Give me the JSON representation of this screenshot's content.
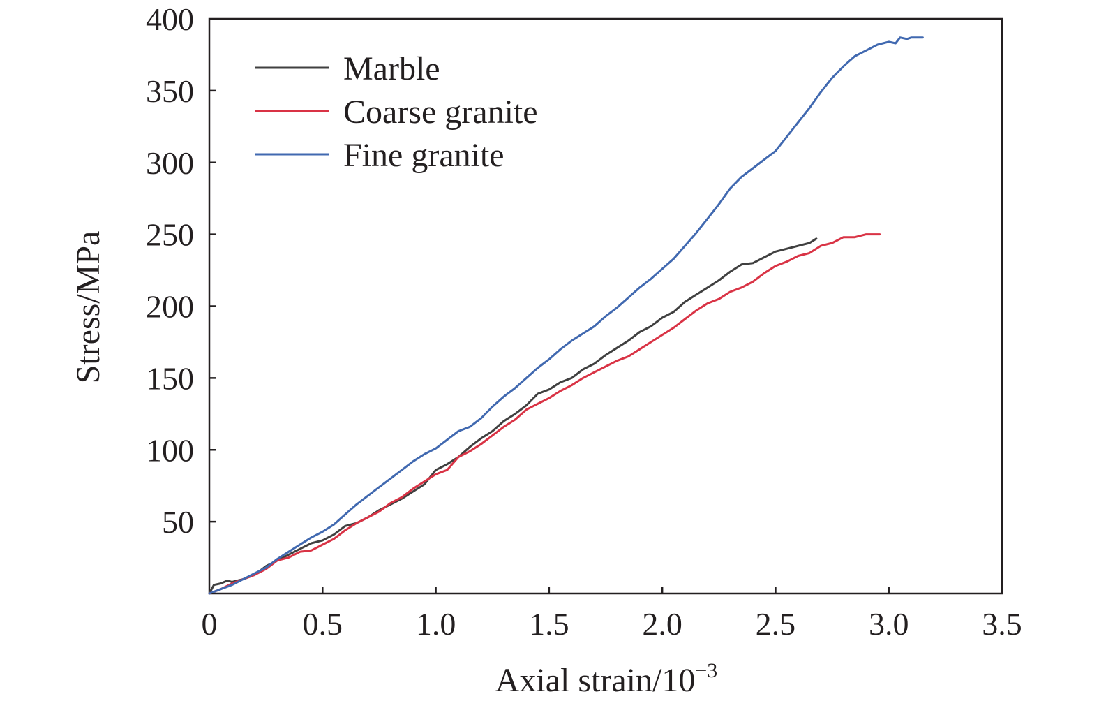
{
  "chart_data": {
    "type": "line",
    "title": "",
    "xlabel": "Axial strain/10",
    "xlabel_superscript": "−3",
    "ylabel": "Stress/MPa",
    "xlim": [
      0,
      3.5
    ],
    "ylim": [
      0,
      400
    ],
    "x_ticks": [
      0,
      0.5,
      1.0,
      1.5,
      2.0,
      2.5,
      3.0,
      3.5
    ],
    "x_tick_labels": [
      "0",
      "0.5",
      "1.0",
      "1.5",
      "2.0",
      "2.5",
      "3.0",
      "3.5"
    ],
    "y_ticks": [
      50,
      100,
      150,
      200,
      250,
      300,
      350,
      400
    ],
    "y_tick_labels": [
      "50",
      "100",
      "150",
      "200",
      "250",
      "300",
      "350",
      "400"
    ],
    "grid": false,
    "legend_position": "top-left",
    "series": [
      {
        "name": "Marble",
        "color": "#404040",
        "points": [
          [
            0,
            0
          ],
          [
            0.02,
            6
          ],
          [
            0.05,
            7
          ],
          [
            0.08,
            9
          ],
          [
            0.1,
            8
          ],
          [
            0.15,
            10
          ],
          [
            0.2,
            13
          ],
          [
            0.25,
            19
          ],
          [
            0.3,
            23
          ],
          [
            0.35,
            27
          ],
          [
            0.4,
            31
          ],
          [
            0.45,
            35
          ],
          [
            0.5,
            37
          ],
          [
            0.55,
            41
          ],
          [
            0.6,
            47
          ],
          [
            0.65,
            49
          ],
          [
            0.7,
            53
          ],
          [
            0.75,
            58
          ],
          [
            0.8,
            62
          ],
          [
            0.85,
            66
          ],
          [
            0.9,
            71
          ],
          [
            0.95,
            76
          ],
          [
            1.0,
            86
          ],
          [
            1.05,
            90
          ],
          [
            1.1,
            95
          ],
          [
            1.15,
            102
          ],
          [
            1.2,
            108
          ],
          [
            1.25,
            113
          ],
          [
            1.3,
            120
          ],
          [
            1.35,
            125
          ],
          [
            1.4,
            131
          ],
          [
            1.45,
            139
          ],
          [
            1.5,
            142
          ],
          [
            1.55,
            147
          ],
          [
            1.6,
            150
          ],
          [
            1.65,
            156
          ],
          [
            1.7,
            160
          ],
          [
            1.75,
            166
          ],
          [
            1.8,
            171
          ],
          [
            1.85,
            176
          ],
          [
            1.9,
            182
          ],
          [
            1.95,
            186
          ],
          [
            2.0,
            192
          ],
          [
            2.05,
            196
          ],
          [
            2.1,
            203
          ],
          [
            2.15,
            208
          ],
          [
            2.2,
            213
          ],
          [
            2.25,
            218
          ],
          [
            2.3,
            224
          ],
          [
            2.35,
            229
          ],
          [
            2.4,
            230
          ],
          [
            2.45,
            234
          ],
          [
            2.5,
            238
          ],
          [
            2.55,
            240
          ],
          [
            2.6,
            242
          ],
          [
            2.65,
            244
          ],
          [
            2.68,
            247
          ]
        ]
      },
      {
        "name": "Coarse granite",
        "color": "#d93345",
        "points": [
          [
            0,
            0
          ],
          [
            0.05,
            3
          ],
          [
            0.1,
            7
          ],
          [
            0.15,
            10
          ],
          [
            0.2,
            13
          ],
          [
            0.25,
            17
          ],
          [
            0.3,
            23
          ],
          [
            0.35,
            25
          ],
          [
            0.4,
            29
          ],
          [
            0.45,
            30
          ],
          [
            0.5,
            34
          ],
          [
            0.55,
            38
          ],
          [
            0.6,
            44
          ],
          [
            0.65,
            49
          ],
          [
            0.7,
            53
          ],
          [
            0.75,
            57
          ],
          [
            0.8,
            63
          ],
          [
            0.85,
            67
          ],
          [
            0.9,
            73
          ],
          [
            0.95,
            78
          ],
          [
            1.0,
            83
          ],
          [
            1.05,
            86
          ],
          [
            1.1,
            95
          ],
          [
            1.15,
            99
          ],
          [
            1.2,
            104
          ],
          [
            1.25,
            110
          ],
          [
            1.3,
            116
          ],
          [
            1.35,
            121
          ],
          [
            1.4,
            128
          ],
          [
            1.45,
            132
          ],
          [
            1.5,
            136
          ],
          [
            1.55,
            141
          ],
          [
            1.6,
            145
          ],
          [
            1.65,
            150
          ],
          [
            1.7,
            154
          ],
          [
            1.75,
            158
          ],
          [
            1.8,
            162
          ],
          [
            1.85,
            165
          ],
          [
            1.9,
            170
          ],
          [
            1.95,
            175
          ],
          [
            2.0,
            180
          ],
          [
            2.05,
            185
          ],
          [
            2.1,
            191
          ],
          [
            2.15,
            197
          ],
          [
            2.2,
            202
          ],
          [
            2.25,
            205
          ],
          [
            2.3,
            210
          ],
          [
            2.35,
            213
          ],
          [
            2.4,
            217
          ],
          [
            2.45,
            223
          ],
          [
            2.5,
            228
          ],
          [
            2.55,
            231
          ],
          [
            2.6,
            235
          ],
          [
            2.65,
            237
          ],
          [
            2.7,
            242
          ],
          [
            2.75,
            244
          ],
          [
            2.8,
            248
          ],
          [
            2.85,
            248
          ],
          [
            2.9,
            250
          ],
          [
            2.96,
            250
          ]
        ]
      },
      {
        "name": "Fine granite",
        "color": "#4169b0",
        "points": [
          [
            0,
            0
          ],
          [
            0.05,
            3
          ],
          [
            0.1,
            6
          ],
          [
            0.15,
            10
          ],
          [
            0.2,
            14
          ],
          [
            0.25,
            18
          ],
          [
            0.3,
            24
          ],
          [
            0.35,
            29
          ],
          [
            0.4,
            34
          ],
          [
            0.45,
            39
          ],
          [
            0.5,
            43
          ],
          [
            0.55,
            48
          ],
          [
            0.6,
            55
          ],
          [
            0.65,
            62
          ],
          [
            0.7,
            68
          ],
          [
            0.75,
            74
          ],
          [
            0.8,
            80
          ],
          [
            0.85,
            86
          ],
          [
            0.9,
            92
          ],
          [
            0.95,
            97
          ],
          [
            1.0,
            101
          ],
          [
            1.05,
            107
          ],
          [
            1.1,
            113
          ],
          [
            1.15,
            116
          ],
          [
            1.2,
            122
          ],
          [
            1.25,
            130
          ],
          [
            1.3,
            137
          ],
          [
            1.35,
            143
          ],
          [
            1.4,
            150
          ],
          [
            1.45,
            157
          ],
          [
            1.5,
            163
          ],
          [
            1.55,
            170
          ],
          [
            1.6,
            176
          ],
          [
            1.65,
            181
          ],
          [
            1.7,
            186
          ],
          [
            1.75,
            193
          ],
          [
            1.8,
            199
          ],
          [
            1.85,
            206
          ],
          [
            1.9,
            213
          ],
          [
            1.95,
            219
          ],
          [
            2.0,
            226
          ],
          [
            2.05,
            233
          ],
          [
            2.1,
            242
          ],
          [
            2.15,
            251
          ],
          [
            2.2,
            261
          ],
          [
            2.25,
            271
          ],
          [
            2.3,
            282
          ],
          [
            2.35,
            290
          ],
          [
            2.4,
            296
          ],
          [
            2.45,
            302
          ],
          [
            2.5,
            308
          ],
          [
            2.55,
            318
          ],
          [
            2.6,
            328
          ],
          [
            2.65,
            338
          ],
          [
            2.7,
            349
          ],
          [
            2.75,
            359
          ],
          [
            2.8,
            367
          ],
          [
            2.85,
            374
          ],
          [
            2.9,
            378
          ],
          [
            2.95,
            382
          ],
          [
            3.0,
            384
          ],
          [
            3.03,
            383
          ],
          [
            3.05,
            387
          ],
          [
            3.08,
            386
          ],
          [
            3.1,
            387
          ],
          [
            3.15,
            387
          ]
        ]
      }
    ]
  }
}
